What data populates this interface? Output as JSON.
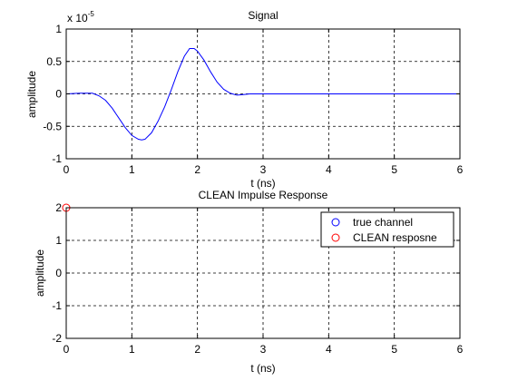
{
  "chart_data": [
    {
      "type": "line",
      "title": "Signal",
      "xlabel": "t (ns)",
      "ylabel": "amplitude",
      "scale_label": "x 10",
      "scale_exponent": "-5",
      "xlim": [
        0,
        6
      ],
      "ylim": [
        -1,
        1
      ],
      "xticks": [
        0,
        1,
        2,
        3,
        4,
        5,
        6
      ],
      "yticks": [
        -1,
        -0.5,
        0,
        0.5,
        1
      ],
      "xtick_labels": [
        "0",
        "1",
        "2",
        "3",
        "4",
        "5",
        "6"
      ],
      "ytick_labels": [
        "-1",
        "-0.5",
        "0",
        "0.5",
        "1"
      ],
      "grid": true,
      "series": [
        {
          "color": "#0000ff",
          "x": [
            0,
            0.2,
            0.4,
            0.5,
            0.6,
            0.7,
            0.8,
            0.9,
            1.0,
            1.1,
            1.15,
            1.2,
            1.3,
            1.4,
            1.5,
            1.6,
            1.7,
            1.8,
            1.88,
            1.95,
            2.0,
            2.1,
            2.2,
            2.3,
            2.4,
            2.5,
            2.6,
            2.7,
            2.8,
            2.9,
            3.0,
            6.0
          ],
          "y": [
            0,
            0.01,
            0.01,
            -0.03,
            -0.1,
            -0.22,
            -0.37,
            -0.52,
            -0.64,
            -0.7,
            -0.71,
            -0.7,
            -0.6,
            -0.42,
            -0.2,
            0.06,
            0.34,
            0.58,
            0.7,
            0.7,
            0.66,
            0.52,
            0.34,
            0.18,
            0.07,
            0.01,
            -0.02,
            -0.01,
            0,
            0,
            0,
            0
          ]
        }
      ]
    },
    {
      "type": "scatter",
      "title": "CLEAN Impulse Response",
      "xlabel": "t (ns)",
      "ylabel": "amplitude",
      "xlim": [
        0,
        6
      ],
      "ylim": [
        -2,
        2
      ],
      "xticks": [
        0,
        1,
        2,
        3,
        4,
        5,
        6
      ],
      "yticks": [
        -2,
        -1,
        0,
        1,
        2
      ],
      "xtick_labels": [
        "0",
        "1",
        "2",
        "3",
        "4",
        "5",
        "6"
      ],
      "ytick_labels": [
        "-2",
        "-1",
        "0",
        "1",
        "2"
      ],
      "grid": true,
      "legend_position": "top-right",
      "series": [
        {
          "name": "true channel",
          "color": "#0000ff",
          "marker": "circle",
          "x": [],
          "y": []
        },
        {
          "name": "CLEAN resposne",
          "color": "#ff0000",
          "marker": "circle",
          "stem": true,
          "x": [
            0
          ],
          "y": [
            2
          ]
        }
      ]
    }
  ]
}
